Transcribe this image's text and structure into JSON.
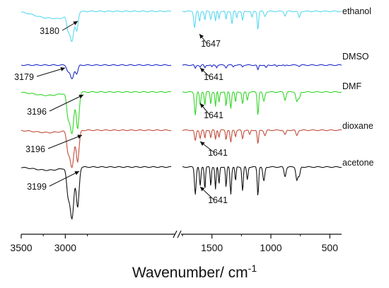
{
  "chart_data": {
    "type": "line",
    "title": "",
    "xlabel": "Wavenumber/ cm",
    "xlabel_sup": "-1",
    "ylabel": "",
    "axis_break": true,
    "left_panel": {
      "xlim": [
        3500,
        1800
      ],
      "ticks": [
        3500,
        3000
      ]
    },
    "right_panel": {
      "xlim": [
        1750,
        400
      ],
      "ticks": [
        1500,
        1000,
        500
      ]
    },
    "x_tick_labels": [
      "3500",
      "3000",
      "1500",
      "1000",
      "500"
    ],
    "series": [
      {
        "name": "ethanol",
        "color": "#5ad8ee",
        "annotations": [
          {
            "label": "3180",
            "x": 3180
          },
          {
            "label": "1647",
            "x": 1647
          }
        ],
        "left_peaks": [
          [
            3200,
            0.22,
            150
          ],
          [
            2970,
            0.45,
            16
          ],
          [
            2925,
            0.95,
            22
          ],
          [
            2870,
            0.6,
            15
          ],
          [
            3050,
            0.1,
            60
          ]
        ],
        "right_peaks": [
          [
            1647,
            0.72,
            7
          ],
          [
            1605,
            0.45,
            6
          ],
          [
            1560,
            0.4,
            5
          ],
          [
            1510,
            0.35,
            6
          ],
          [
            1470,
            0.45,
            5
          ],
          [
            1440,
            0.32,
            5
          ],
          [
            1380,
            0.38,
            5
          ],
          [
            1330,
            0.55,
            6
          ],
          [
            1290,
            0.3,
            5
          ],
          [
            1240,
            0.4,
            6
          ],
          [
            1160,
            0.28,
            6
          ],
          [
            1110,
            0.8,
            6
          ],
          [
            1050,
            0.22,
            8
          ],
          [
            880,
            0.2,
            8
          ],
          [
            760,
            0.28,
            8
          ]
        ],
        "lscale": 42,
        "rscale": 32
      },
      {
        "name": "DMSO",
        "color": "#1f2ac8",
        "annotations": [
          {
            "label": "3179",
            "x": 3179
          },
          {
            "label": "1641",
            "x": 1641
          }
        ],
        "left_peaks": [
          [
            2970,
            0.35,
            15
          ],
          [
            2925,
            0.9,
            20
          ],
          [
            2870,
            0.55,
            14
          ]
        ],
        "right_peaks": [
          [
            1641,
            0.6,
            6
          ],
          [
            1600,
            0.35,
            5
          ],
          [
            1560,
            0.5,
            5
          ],
          [
            1500,
            0.35,
            5
          ],
          [
            1460,
            0.4,
            5
          ],
          [
            1380,
            0.45,
            6
          ],
          [
            1320,
            0.3,
            5
          ],
          [
            1240,
            0.3,
            5
          ],
          [
            1110,
            0.9,
            6
          ],
          [
            1040,
            0.5,
            7
          ],
          [
            950,
            0.3,
            6
          ],
          [
            880,
            0.2,
            6
          ],
          [
            760,
            0.2,
            6
          ]
        ],
        "lscale": 22,
        "rscale": 8
      },
      {
        "name": "DMF",
        "color": "#33d626",
        "annotations": [
          {
            "label": "3196",
            "x": 3196
          },
          {
            "label": "1641",
            "x": 1641
          }
        ],
        "left_peaks": [
          [
            3200,
            0.08,
            150
          ],
          [
            2970,
            0.5,
            16
          ],
          [
            2925,
            0.95,
            22
          ],
          [
            2860,
            0.85,
            16
          ]
        ],
        "right_peaks": [
          [
            1641,
            0.85,
            7
          ],
          [
            1600,
            0.5,
            6
          ],
          [
            1560,
            0.5,
            5
          ],
          [
            1510,
            0.45,
            5
          ],
          [
            1470,
            0.55,
            5
          ],
          [
            1440,
            0.4,
            5
          ],
          [
            1380,
            0.55,
            5
          ],
          [
            1340,
            0.6,
            6
          ],
          [
            1300,
            0.4,
            5
          ],
          [
            1240,
            0.45,
            6
          ],
          [
            1200,
            0.3,
            6
          ],
          [
            1110,
            0.85,
            6
          ],
          [
            1060,
            0.35,
            8
          ],
          [
            880,
            0.3,
            8
          ],
          [
            780,
            0.35,
            8
          ],
          [
            760,
            0.25,
            8
          ]
        ],
        "lscale": 60,
        "rscale": 38
      },
      {
        "name": "dioxane",
        "color": "#c24d3b",
        "annotations": [
          {
            "label": "3196",
            "x": 3196
          },
          {
            "label": "1641",
            "x": 1641
          }
        ],
        "left_peaks": [
          [
            3200,
            0.06,
            150
          ],
          [
            2970,
            0.45,
            16
          ],
          [
            2925,
            0.95,
            22
          ],
          [
            2860,
            0.8,
            16
          ]
        ],
        "right_peaks": [
          [
            1641,
            0.7,
            7
          ],
          [
            1600,
            0.5,
            6
          ],
          [
            1560,
            0.55,
            5
          ],
          [
            1510,
            0.5,
            5
          ],
          [
            1470,
            0.6,
            5
          ],
          [
            1440,
            0.45,
            5
          ],
          [
            1380,
            0.6,
            5
          ],
          [
            1340,
            0.8,
            6
          ],
          [
            1300,
            0.4,
            5
          ],
          [
            1240,
            0.55,
            6
          ],
          [
            1180,
            0.3,
            6
          ],
          [
            1110,
            0.9,
            6
          ],
          [
            1050,
            0.35,
            8
          ],
          [
            880,
            0.3,
            8
          ],
          [
            780,
            0.35,
            8
          ]
        ],
        "lscale": 55,
        "rscale": 22
      },
      {
        "name": "acetone",
        "color": "#111111",
        "annotations": [
          {
            "label": "3199",
            "x": 3199
          },
          {
            "label": "1641",
            "x": 1641
          }
        ],
        "left_peaks": [
          [
            3200,
            0.06,
            150
          ],
          [
            2970,
            0.45,
            16
          ],
          [
            2925,
            0.95,
            22
          ],
          [
            2860,
            0.75,
            16
          ]
        ],
        "right_peaks": [
          [
            1641,
            0.85,
            7
          ],
          [
            1600,
            0.6,
            6
          ],
          [
            1560,
            0.7,
            5
          ],
          [
            1510,
            0.6,
            5
          ],
          [
            1470,
            0.7,
            5
          ],
          [
            1440,
            0.55,
            5
          ],
          [
            1380,
            0.65,
            5
          ],
          [
            1340,
            0.85,
            6
          ],
          [
            1300,
            0.45,
            5
          ],
          [
            1240,
            0.75,
            6
          ],
          [
            1200,
            0.4,
            6
          ],
          [
            1110,
            0.9,
            6
          ],
          [
            1060,
            0.45,
            8
          ],
          [
            880,
            0.3,
            8
          ],
          [
            780,
            0.4,
            8
          ],
          [
            760,
            0.3,
            8
          ]
        ],
        "lscale": 75,
        "rscale": 45
      }
    ]
  }
}
